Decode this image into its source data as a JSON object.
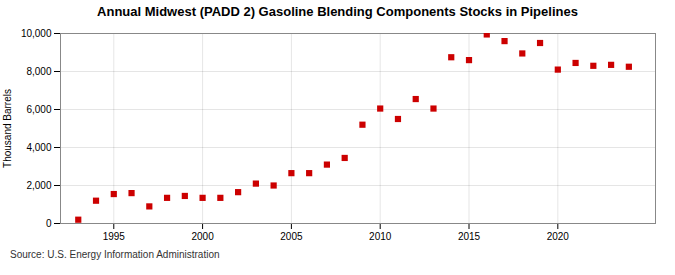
{
  "chart_data": {
    "type": "scatter",
    "title": "Annual Midwest (PADD 2) Gasoline Blending Components Stocks in Pipelines",
    "ylabel": "Thousand Barrels",
    "source": "Source: U.S. Energy Information Administration",
    "color": "#cc0000",
    "marker": "square",
    "grid": true,
    "xlim": [
      1992.0,
      2025.5
    ],
    "ylim": [
      0,
      10000
    ],
    "xticks": [
      1995,
      2000,
      2005,
      2010,
      2015,
      2020
    ],
    "yticks": [
      0,
      {
        "value": 2000,
        "label": "2,000"
      },
      {
        "value": 4000,
        "label": "4,000"
      },
      {
        "value": 6000,
        "label": "6,000"
      },
      {
        "value": 8000,
        "label": "8,000"
      },
      {
        "value": 10000,
        "label": "10,000"
      }
    ],
    "x": [
      1993,
      1994,
      1995,
      1996,
      1997,
      1998,
      1999,
      2000,
      2001,
      2002,
      2003,
      2004,
      2005,
      2006,
      2007,
      2008,
      2009,
      2010,
      2011,
      2012,
      2013,
      2014,
      2015,
      2016,
      2017,
      2018,
      2019,
      2020,
      2021,
      2022,
      2023,
      2024
    ],
    "values": [
      200,
      1200,
      1550,
      1600,
      900,
      1350,
      1450,
      1350,
      1350,
      1650,
      2100,
      2000,
      2650,
      2650,
      3100,
      3450,
      5200,
      6050,
      5500,
      6550,
      6050,
      8750,
      8600,
      9950,
      9600,
      8950,
      9500,
      8100,
      8450,
      8300,
      8350,
      8250
    ]
  }
}
